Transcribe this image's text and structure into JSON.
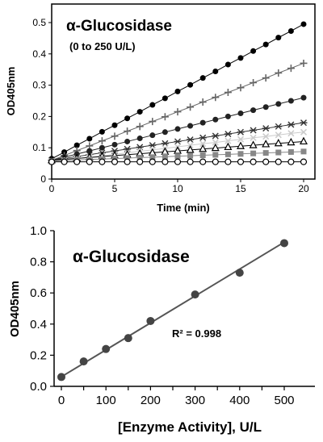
{
  "chart_data": [
    {
      "type": "scatter",
      "title": "α-Glucosidase",
      "subtitle": "(0 to 250 U/L)",
      "xlabel": "Time (min)",
      "ylabel": "OD405nm",
      "xlim": [
        0,
        20
      ],
      "ylim": [
        0,
        0.5
      ],
      "xticks": [
        0,
        5,
        10,
        15,
        20
      ],
      "yticks": [
        0,
        0.1,
        0.2,
        0.3,
        0.4,
        0.5
      ],
      "grid": false,
      "x": [
        0,
        1,
        2,
        3,
        4,
        5,
        6,
        7,
        8,
        9,
        10,
        11,
        12,
        13,
        14,
        15,
        16,
        17,
        18,
        19,
        20
      ],
      "series": [
        {
          "marker": "filled-circle",
          "color": "#000000",
          "values": [
            0.065,
            0.086,
            0.108,
            0.129,
            0.151,
            0.172,
            0.194,
            0.215,
            0.237,
            0.258,
            0.28,
            0.301,
            0.323,
            0.344,
            0.366,
            0.387,
            0.409,
            0.43,
            0.452,
            0.473,
            0.495
          ]
        },
        {
          "marker": "plus",
          "color": "#666666",
          "values": [
            0.06,
            0.075,
            0.091,
            0.106,
            0.122,
            0.137,
            0.153,
            0.168,
            0.184,
            0.199,
            0.215,
            0.23,
            0.246,
            0.261,
            0.277,
            0.292,
            0.308,
            0.323,
            0.339,
            0.354,
            0.37
          ]
        },
        {
          "marker": "filled-circle",
          "color": "#222222",
          "values": [
            0.06,
            0.07,
            0.08,
            0.09,
            0.1,
            0.11,
            0.12,
            0.13,
            0.14,
            0.15,
            0.16,
            0.17,
            0.18,
            0.19,
            0.2,
            0.21,
            0.22,
            0.23,
            0.24,
            0.25,
            0.26
          ]
        },
        {
          "marker": "asterisk",
          "color": "#333333",
          "values": [
            0.06,
            0.066,
            0.072,
            0.078,
            0.084,
            0.09,
            0.096,
            0.102,
            0.108,
            0.114,
            0.12,
            0.126,
            0.132,
            0.138,
            0.144,
            0.15,
            0.156,
            0.162,
            0.168,
            0.174,
            0.18
          ]
        },
        {
          "marker": "x",
          "color": "#cccccc",
          "values": [
            0.055,
            0.06,
            0.065,
            0.07,
            0.074,
            0.079,
            0.084,
            0.089,
            0.093,
            0.098,
            0.103,
            0.108,
            0.113,
            0.117,
            0.122,
            0.127,
            0.132,
            0.136,
            0.141,
            0.146,
            0.15
          ]
        },
        {
          "marker": "open-triangle",
          "color": "#000000",
          "values": [
            0.06,
            0.063,
            0.066,
            0.069,
            0.072,
            0.075,
            0.078,
            0.081,
            0.084,
            0.087,
            0.09,
            0.093,
            0.096,
            0.099,
            0.102,
            0.105,
            0.108,
            0.111,
            0.114,
            0.117,
            0.12
          ]
        },
        {
          "marker": "filled-square",
          "color": "#888888",
          "values": [
            0.058,
            0.0595,
            0.061,
            0.0625,
            0.064,
            0.0655,
            0.067,
            0.0685,
            0.07,
            0.0715,
            0.073,
            0.0745,
            0.076,
            0.0775,
            0.079,
            0.0805,
            0.082,
            0.0835,
            0.085,
            0.0865,
            0.088
          ]
        },
        {
          "marker": "open-circle",
          "color": "#000000",
          "values": [
            0.055,
            0.055,
            0.055,
            0.055,
            0.055,
            0.055,
            0.055,
            0.055,
            0.055,
            0.055,
            0.055,
            0.055,
            0.055,
            0.055,
            0.055,
            0.055,
            0.055,
            0.055,
            0.055,
            0.055,
            0.055
          ]
        }
      ]
    },
    {
      "type": "scatter",
      "title": "α-Glucosidase",
      "xlabel": "[Enzyme Activity], U/L",
      "ylabel": "OD405nm",
      "xlim": [
        0,
        500
      ],
      "ylim": [
        0,
        1.0
      ],
      "xticks": [
        0,
        50,
        100,
        150,
        200,
        250,
        300,
        350,
        400,
        450,
        500
      ],
      "xticklabels": [
        "0",
        "",
        "100",
        "",
        "200",
        "",
        "300",
        "",
        "400",
        "",
        "500"
      ],
      "yticks": [
        0,
        0.2,
        0.4,
        0.6,
        0.8,
        1.0
      ],
      "yticklabels": [
        "0.0",
        "0.2",
        "0.4",
        "0.6",
        "0.8",
        "1.0"
      ],
      "grid": false,
      "annotation": "R² = 0.998",
      "fit_line": {
        "x": [
          -2,
          505
        ],
        "y": [
          0.058,
          0.935
        ],
        "color": "#555555"
      },
      "points": {
        "x": [
          0,
          50,
          100,
          150,
          200,
          300,
          400,
          500
        ],
        "y": [
          0.06,
          0.16,
          0.24,
          0.31,
          0.42,
          0.59,
          0.73,
          0.92
        ]
      }
    }
  ]
}
